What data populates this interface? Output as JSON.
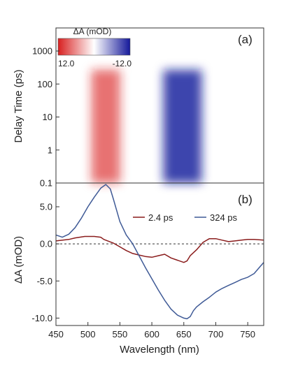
{
  "chart_data": [
    {
      "panel_label": "(a)",
      "type": "heatmap",
      "xlabel": "",
      "ylabel": "Delay Time (ps)",
      "y_scale": "log",
      "xlim": [
        450,
        775
      ],
      "ylim": [
        0.1,
        5000
      ],
      "y_ticks": [
        0.1,
        1,
        10,
        100,
        1000
      ],
      "y_tick_labels": [
        "0.1",
        "1",
        "10",
        "100",
        "1000"
      ],
      "colorbar": {
        "title": "ΔA (mOD)",
        "min_label": "12.0",
        "max_label": "-12.0",
        "min_value": 12.0,
        "max_value": -12.0,
        "colors": [
          "#d81f1f",
          "#ffffff",
          "#14189a"
        ]
      },
      "bands": [
        {
          "name": "",
          "center_nm": 528,
          "width_nm": 45,
          "peak_value": 6.0
        },
        {
          "name": "",
          "center_nm": 648,
          "width_nm": 60,
          "peak_value": -10.0
        }
      ]
    },
    {
      "panel_label": "(b)",
      "type": "line",
      "xlabel": "Wavelength (nm)",
      "ylabel": "ΔA (mOD)",
      "xlim": [
        450,
        775
      ],
      "ylim": [
        -11,
        8.2
      ],
      "x_ticks": [
        450,
        500,
        550,
        600,
        650,
        700,
        750
      ],
      "y_ticks": [
        -10,
        -5,
        0,
        5
      ],
      "y_tick_labels": [
        "-10.0",
        "-5.0",
        "0.0",
        "5.0"
      ],
      "zero_line": true,
      "legend_position": "upper-right",
      "series": [
        {
          "name": "2.4 ps",
          "color": "#8a1c1c",
          "x": [
            450,
            470,
            480,
            495,
            510,
            520,
            525,
            540,
            550,
            560,
            570,
            580,
            590,
            600,
            610,
            620,
            630,
            640,
            650,
            655,
            660,
            670,
            680,
            690,
            700,
            710,
            720,
            730,
            740,
            750,
            760,
            775
          ],
          "y": [
            0.4,
            0.6,
            0.8,
            1.0,
            1.0,
            0.9,
            0.6,
            0.1,
            -0.4,
            -0.9,
            -1.3,
            -1.5,
            -1.7,
            -1.8,
            -1.6,
            -1.4,
            -1.9,
            -2.2,
            -2.5,
            -2.3,
            -1.6,
            -0.8,
            0.2,
            0.7,
            0.7,
            0.5,
            0.3,
            0.4,
            0.5,
            0.6,
            0.6,
            0.5
          ]
        },
        {
          "name": "324 ps",
          "color": "#3f5a96",
          "x": [
            450,
            460,
            470,
            480,
            490,
            500,
            510,
            520,
            528,
            535,
            540,
            545,
            550,
            560,
            570,
            580,
            590,
            600,
            610,
            620,
            630,
            640,
            650,
            655,
            660,
            665,
            670,
            680,
            690,
            700,
            710,
            720,
            730,
            740,
            750,
            760,
            770,
            775
          ],
          "y": [
            1.2,
            0.9,
            1.3,
            2.2,
            3.5,
            5.0,
            6.3,
            7.5,
            8.0,
            7.4,
            6.0,
            4.5,
            3.0,
            1.2,
            0.0,
            -1.6,
            -3.2,
            -4.7,
            -6.2,
            -7.6,
            -8.8,
            -9.6,
            -10.0,
            -10.1,
            -9.8,
            -9.0,
            -8.5,
            -7.8,
            -7.2,
            -6.5,
            -6.0,
            -5.6,
            -5.2,
            -4.8,
            -4.5,
            -4.0,
            -3.0,
            -2.5
          ]
        }
      ]
    }
  ]
}
